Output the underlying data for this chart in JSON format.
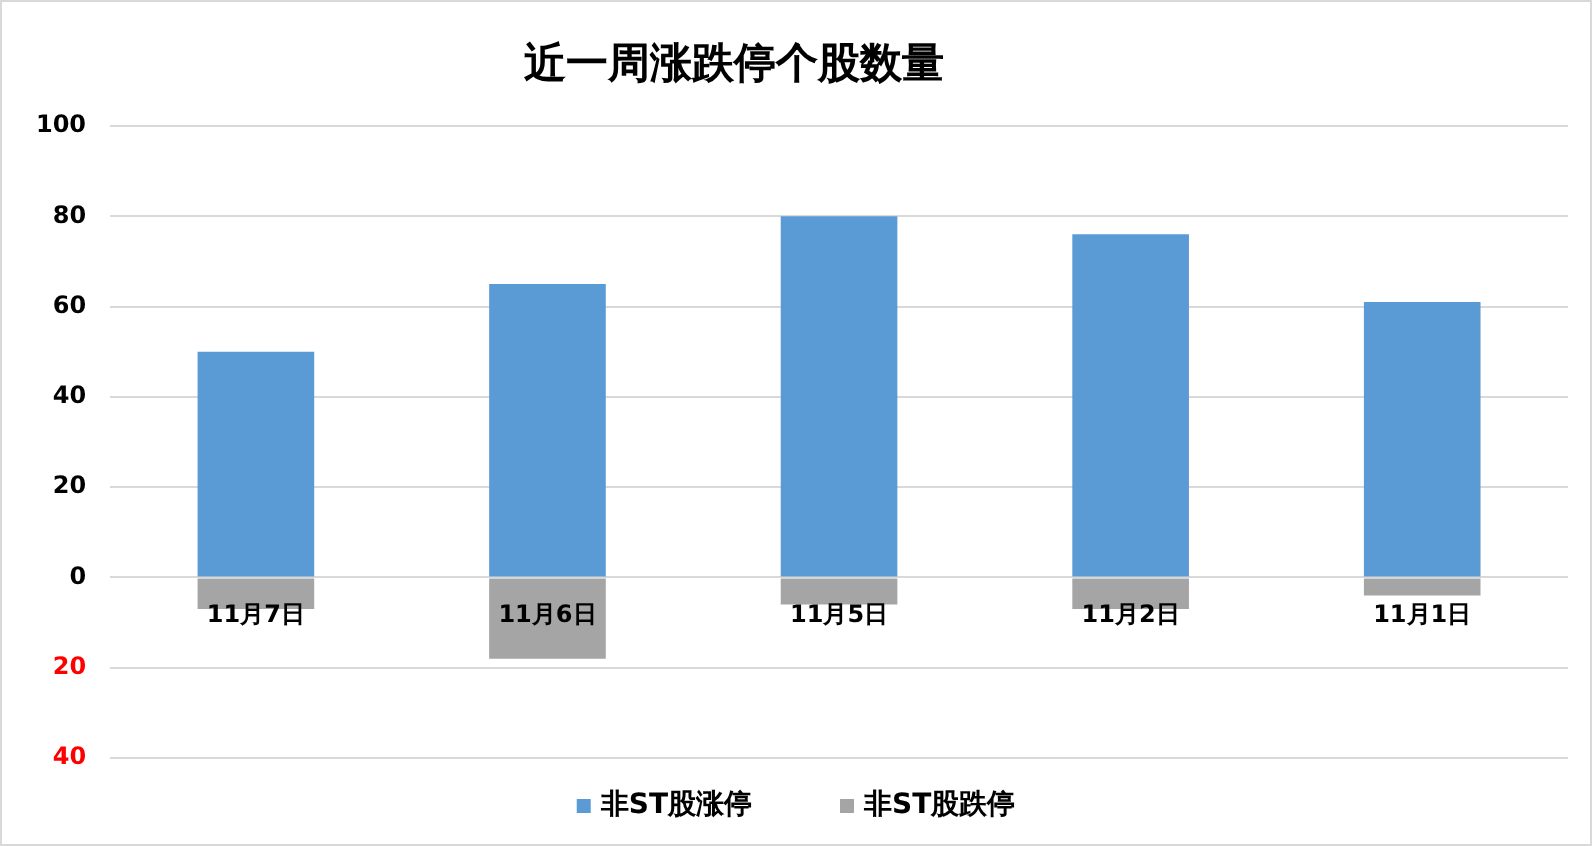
{
  "chart_data": {
    "type": "bar",
    "title": "近一周涨跌停个股数量",
    "categories": [
      "11月7日",
      "11月6日",
      "11月5日",
      "11月2日",
      "11月1日"
    ],
    "stacked": true,
    "series": [
      {
        "name": "非ST股涨停",
        "color": "#5b9bd5",
        "values": [
          50,
          65,
          80,
          76,
          61
        ]
      },
      {
        "name": "非ST股跌停",
        "color": "#a5a5a5",
        "values": [
          -7,
          -18,
          -6,
          -7,
          -4
        ]
      }
    ],
    "ylim": [
      -40,
      100
    ],
    "yticks": [
      {
        "value": -40,
        "label": "40"
      },
      {
        "value": -20,
        "label": "20"
      },
      0,
      20,
      40,
      60,
      80,
      100
    ],
    "grid": "y",
    "legend": "bottom"
  }
}
